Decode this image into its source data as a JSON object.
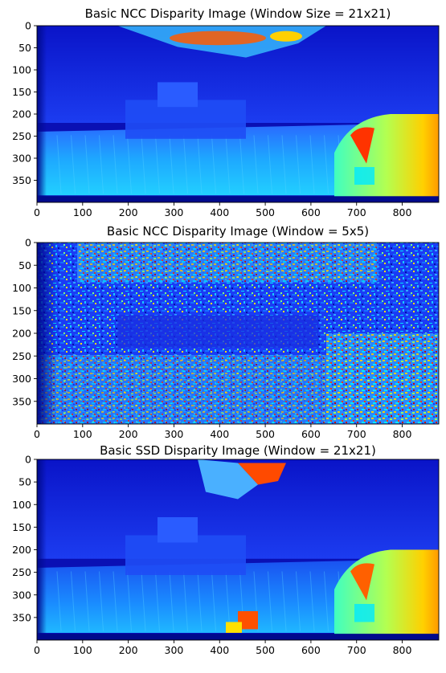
{
  "chart_data": [
    {
      "type": "heatmap",
      "title": "Basic NCC Disparity Image (Window Size = 21x21)",
      "colormap": "jet",
      "xlim": [
        0,
        880
      ],
      "ylim": [
        400,
        0
      ],
      "x_ticks": [
        "0",
        "100",
        "200",
        "300",
        "400",
        "500",
        "600",
        "700",
        "800"
      ],
      "y_ticks": [
        "0",
        "50",
        "100",
        "150",
        "200",
        "250",
        "300",
        "350"
      ],
      "variant": "smooth"
    },
    {
      "type": "heatmap",
      "title": "Basic NCC Disparity Image (Window = 5x5)",
      "colormap": "jet",
      "xlim": [
        0,
        880
      ],
      "ylim": [
        400,
        0
      ],
      "x_ticks": [
        "0",
        "100",
        "200",
        "300",
        "400",
        "500",
        "600",
        "700",
        "800"
      ],
      "y_ticks": [
        "0",
        "50",
        "100",
        "150",
        "200",
        "250",
        "300",
        "350"
      ],
      "variant": "noisy"
    },
    {
      "type": "heatmap",
      "title": "Basic SSD Disparity Image (Window = 21x21)",
      "colormap": "jet",
      "xlim": [
        0,
        880
      ],
      "ylim": [
        400,
        0
      ],
      "x_ticks": [
        "0",
        "100",
        "200",
        "300",
        "400",
        "500",
        "600",
        "700",
        "800"
      ],
      "y_ticks": [
        "0",
        "50",
        "100",
        "150",
        "200",
        "250",
        "300",
        "350"
      ],
      "variant": "ssd"
    }
  ]
}
